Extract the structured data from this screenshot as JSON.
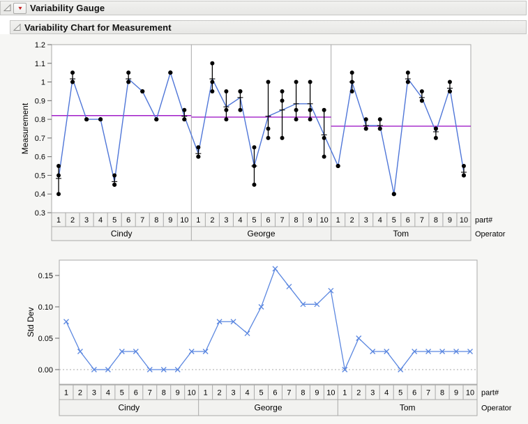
{
  "headers": [
    {
      "title": "Variability Gauge"
    },
    {
      "title": "Variability Chart for Measurement"
    }
  ],
  "axis_labels": {
    "row1": "part#",
    "row2": "Operator"
  },
  "colors": {
    "blue_line": "#4F76D8",
    "marker_blue": "#5B87E0",
    "purple_mean": "#A01EC8",
    "point_black": "#000000",
    "frame_grey": "#A9A9A9",
    "tick_grey": "#666666",
    "cell_bg": "#F2F2F0",
    "plot_bg": "#FFFFFF",
    "ref_dotted": "#AAAAAA",
    "red_triangle": "#C62222",
    "text": "#000000"
  },
  "chart_data": [
    {
      "type": "line",
      "name": "variability-chart-for-measurement",
      "ylabel": "Measurement",
      "ylim": [
        0.3,
        1.2
      ],
      "yticks": [
        "1.2",
        "1.1",
        "1",
        "0.9",
        "0.8",
        "0.7",
        "0.6",
        "0.5",
        "0.4",
        "0.3"
      ],
      "grid": false,
      "parts": [
        "1",
        "2",
        "3",
        "4",
        "5",
        "6",
        "7",
        "8",
        "9",
        "10"
      ],
      "operators": [
        "Cindy",
        "George",
        "Tom"
      ],
      "style_notes": "black dots = individual measurements, black vertical range bars with mean tick, blue line connects cell means, purple horizontal line = operator mean",
      "series": [
        {
          "name": "Cindy",
          "cells": [
            [
              0.55,
              0.5,
              0.4
            ],
            [
              1.05,
              1.0,
              1.0
            ],
            [
              0.8,
              0.8,
              0.8
            ],
            [
              0.8,
              0.8,
              0.8
            ],
            [
              0.5,
              0.45,
              0.45
            ],
            [
              1.05,
              1.0,
              1.0
            ],
            [
              0.95,
              0.95,
              0.95
            ],
            [
              0.8,
              0.8,
              0.8
            ],
            [
              1.05,
              1.05,
              1.05
            ],
            [
              0.85,
              0.8,
              0.8
            ]
          ]
        },
        {
          "name": "George",
          "cells": [
            [
              0.65,
              0.6,
              0.6
            ],
            [
              1.1,
              1.0,
              0.95
            ],
            [
              0.95,
              0.85,
              0.8
            ],
            [
              0.95,
              0.95,
              0.85
            ],
            [
              0.65,
              0.55,
              0.45
            ],
            [
              1.0,
              0.75,
              0.7
            ],
            [
              0.95,
              0.9,
              0.7
            ],
            [
              1.0,
              0.85,
              0.8
            ],
            [
              1.0,
              0.85,
              0.8
            ],
            [
              0.85,
              0.7,
              0.6
            ]
          ]
        },
        {
          "name": "Tom",
          "cells": [
            [
              0.55,
              0.55,
              0.55
            ],
            [
              1.05,
              1.0,
              0.95
            ],
            [
              0.8,
              0.75,
              0.75
            ],
            [
              0.8,
              0.75,
              0.75
            ],
            [
              0.4,
              0.4,
              0.4
            ],
            [
              1.05,
              1.0,
              1.0
            ],
            [
              0.95,
              0.9,
              0.9
            ],
            [
              0.75,
              0.75,
              0.7
            ],
            [
              1.0,
              0.95,
              0.95
            ],
            [
              0.55,
              0.5,
              0.5
            ]
          ]
        }
      ]
    },
    {
      "type": "line",
      "name": "std-dev-chart",
      "ylabel": "Std Dev",
      "yticks": [
        "0.15",
        "0.10",
        "0.05",
        "0.00"
      ],
      "ytick_values": [
        0.15,
        0.1,
        0.05,
        0.0
      ],
      "refline": 0,
      "marker": "x",
      "parts": [
        "1",
        "2",
        "3",
        "4",
        "5",
        "6",
        "7",
        "8",
        "9",
        "10"
      ],
      "operators": [
        "Cindy",
        "George",
        "Tom"
      ],
      "series": [
        {
          "name": "Cindy",
          "values": [
            0.0764,
            0.0289,
            0,
            0,
            0.0289,
            0.0289,
            0,
            0,
            0,
            0.0289
          ]
        },
        {
          "name": "George",
          "values": [
            0.0289,
            0.0764,
            0.0764,
            0.0577,
            0.1,
            0.1607,
            0.1323,
            0.1041,
            0.1041,
            0.1258
          ]
        },
        {
          "name": "Tom",
          "values": [
            0,
            0.05,
            0.0289,
            0.0289,
            0,
            0.0289,
            0.0289,
            0.0289,
            0.0289,
            0.0289
          ]
        }
      ]
    }
  ]
}
